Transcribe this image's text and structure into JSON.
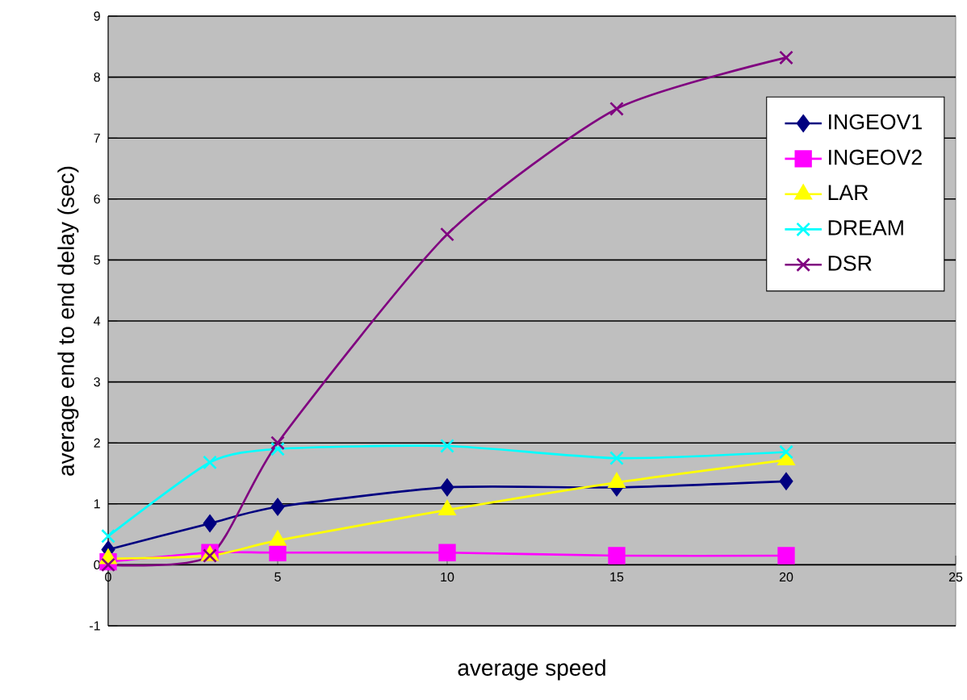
{
  "chart_data": {
    "type": "line",
    "xlabel": "average speed",
    "ylabel": "average end to end delay (sec)",
    "x": [
      0,
      3,
      5,
      10,
      15,
      20
    ],
    "series": [
      {
        "name": "INGEOV1",
        "color": "#000080",
        "marker": "diamond",
        "values": [
          0.25,
          0.68,
          0.95,
          1.27,
          1.27,
          1.37
        ]
      },
      {
        "name": "INGEOV2",
        "color": "#ff00ff",
        "marker": "square",
        "values": [
          0.05,
          0.2,
          0.2,
          0.2,
          0.15,
          0.15
        ]
      },
      {
        "name": "LAR",
        "color": "#ffff00",
        "marker": "triangle",
        "values": [
          0.1,
          0.15,
          0.4,
          0.9,
          1.35,
          1.72
        ]
      },
      {
        "name": "DREAM",
        "color": "#00ffff",
        "marker": "cross",
        "values": [
          0.47,
          1.68,
          1.9,
          1.95,
          1.75,
          1.85
        ]
      },
      {
        "name": "DSR",
        "color": "#800080",
        "marker": "cross",
        "values": [
          0,
          0.15,
          2.0,
          5.42,
          7.48,
          8.32
        ]
      }
    ],
    "xlim": [
      0,
      25
    ],
    "xticks": [
      0,
      5,
      10,
      15,
      20,
      25
    ],
    "ylim": [
      -1,
      9
    ],
    "yticks": [
      -1,
      0,
      1,
      2,
      3,
      4,
      5,
      6,
      7,
      8,
      9
    ],
    "grid": "y",
    "legend": "top right",
    "line_style": "solid"
  }
}
